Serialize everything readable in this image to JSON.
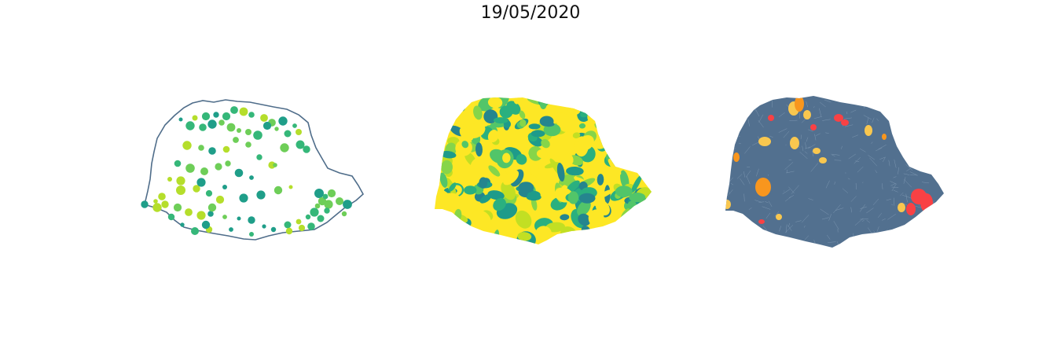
{
  "figure": {
    "title": "19/05/2020"
  },
  "panels": [
    {
      "id": "points",
      "kind": "proportional-symbols",
      "background": "#ffffff",
      "outline_color": "#4f6d8a",
      "palette": [
        "#b5de2b",
        "#6ece58",
        "#35b779",
        "#1f9e89"
      ]
    },
    {
      "id": "choropleth",
      "kind": "choropleth",
      "palette": [
        "#fde725",
        "#c2df23",
        "#86d549",
        "#52c569",
        "#2ab07f",
        "#1e9b8a",
        "#25858e"
      ]
    },
    {
      "id": "risk",
      "kind": "categorical",
      "palette": {
        "base": "#52708f",
        "low": "#f9c74f",
        "medium": "#f8961e",
        "high": "#f94144"
      },
      "border_color": "#8fa7bf"
    }
  ]
}
